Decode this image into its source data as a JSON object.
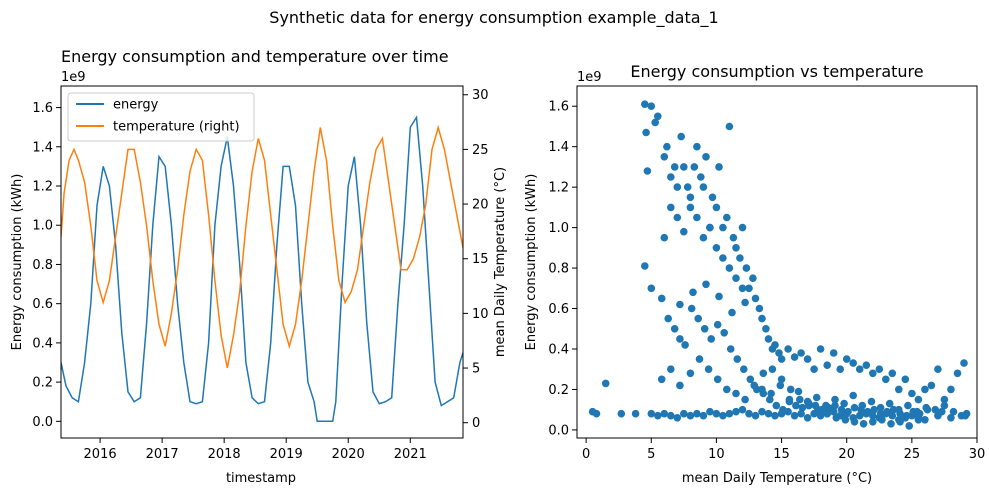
{
  "figure": {
    "suptitle": "Synthetic data for energy consumption example_data_1"
  },
  "chart_data": [
    {
      "type": "line",
      "title": "Energy consumption and temperature over time",
      "xlabel": "timestamp",
      "ylabel": "Energy consumption (kWh)",
      "ylabel_right": "mean Daily Temperature (°C)",
      "offset_text": "1e9",
      "xlim": [
        2015.37,
        2021.85
      ],
      "ylim": [
        -0.085,
        1.71
      ],
      "ylim_right": [
        -1.4,
        30.8
      ],
      "x_ticks": [
        2016,
        2017,
        2018,
        2019,
        2020,
        2021
      ],
      "x_tick_labels": [
        "2016",
        "2017",
        "2018",
        "2019",
        "2020",
        "2021"
      ],
      "y_ticks": [
        0.0,
        0.2,
        0.4,
        0.6,
        0.8,
        1.0,
        1.2,
        1.4,
        1.6
      ],
      "y_tick_labels": [
        "0.0",
        "0.2",
        "0.4",
        "0.6",
        "0.8",
        "1.0",
        "1.2",
        "1.4",
        "1.6"
      ],
      "y_right_ticks": [
        0,
        5,
        10,
        15,
        20,
        25,
        30
      ],
      "y_right_tick_labels": [
        "0",
        "5",
        "10",
        "15",
        "20",
        "25",
        "30"
      ],
      "legend": {
        "position": "upper-left",
        "entries": [
          "energy",
          "temperature (right)"
        ]
      },
      "series": [
        {
          "name": "energy",
          "color": "#1f77b4",
          "axis": "left",
          "x": [
            2015.37,
            2015.45,
            2015.55,
            2015.65,
            2015.75,
            2015.85,
            2015.95,
            2016.05,
            2016.15,
            2016.25,
            2016.35,
            2016.45,
            2016.55,
            2016.65,
            2016.75,
            2016.85,
            2016.95,
            2017.05,
            2017.15,
            2017.25,
            2017.35,
            2017.45,
            2017.55,
            2017.65,
            2017.75,
            2017.85,
            2017.95,
            2018.05,
            2018.15,
            2018.25,
            2018.35,
            2018.45,
            2018.55,
            2018.65,
            2018.75,
            2018.85,
            2018.95,
            2019.05,
            2019.15,
            2019.25,
            2019.35,
            2019.45,
            2019.5,
            2019.75,
            2019.8,
            2019.9,
            2020.0,
            2020.1,
            2020.2,
            2020.3,
            2020.4,
            2020.5,
            2020.6,
            2020.7,
            2020.8,
            2020.9,
            2021.0,
            2021.1,
            2021.2,
            2021.3,
            2021.4,
            2021.5,
            2021.6,
            2021.7,
            2021.8,
            2021.85
          ],
          "y": [
            0.3,
            0.18,
            0.12,
            0.1,
            0.3,
            0.6,
            1.1,
            1.3,
            1.2,
            0.9,
            0.45,
            0.15,
            0.1,
            0.12,
            0.5,
            1.0,
            1.35,
            1.3,
            1.0,
            0.6,
            0.3,
            0.1,
            0.09,
            0.1,
            0.4,
            1.0,
            1.3,
            1.45,
            1.2,
            0.8,
            0.3,
            0.12,
            0.09,
            0.1,
            0.4,
            0.9,
            1.3,
            1.3,
            1.1,
            0.6,
            0.2,
            0.1,
            0.0,
            0.0,
            0.1,
            0.7,
            1.2,
            1.35,
            1.0,
            0.5,
            0.15,
            0.09,
            0.1,
            0.12,
            0.6,
            1.0,
            1.5,
            1.55,
            1.2,
            0.7,
            0.2,
            0.08,
            0.1,
            0.12,
            0.3,
            0.35
          ]
        },
        {
          "name": "temperature (right)",
          "color": "#ff7f0e",
          "axis": "right",
          "x": [
            2015.37,
            2015.42,
            2015.5,
            2015.58,
            2015.65,
            2015.75,
            2015.85,
            2015.95,
            2016.05,
            2016.15,
            2016.25,
            2016.35,
            2016.45,
            2016.55,
            2016.65,
            2016.75,
            2016.85,
            2016.95,
            2017.05,
            2017.15,
            2017.25,
            2017.35,
            2017.45,
            2017.55,
            2017.65,
            2017.75,
            2017.85,
            2017.95,
            2018.05,
            2018.15,
            2018.25,
            2018.35,
            2018.45,
            2018.55,
            2018.65,
            2018.75,
            2018.85,
            2018.95,
            2019.05,
            2019.15,
            2019.25,
            2019.35,
            2019.45,
            2019.55,
            2019.65,
            2019.75,
            2019.85,
            2019.95,
            2020.05,
            2020.15,
            2020.25,
            2020.35,
            2020.45,
            2020.55,
            2020.65,
            2020.75,
            2020.85,
            2020.95,
            2021.05,
            2021.15,
            2021.25,
            2021.35,
            2021.45,
            2021.55,
            2021.65,
            2021.75,
            2021.85
          ],
          "y": [
            17,
            21,
            24,
            25,
            24,
            22,
            18,
            13,
            11,
            13,
            17,
            21,
            25,
            25,
            22,
            18,
            13,
            9,
            7,
            10,
            14,
            19,
            23,
            25,
            24,
            19,
            13,
            8,
            5,
            8,
            12,
            18,
            23,
            26,
            24,
            19,
            14,
            9,
            7,
            9,
            13,
            18,
            23,
            27,
            24,
            18,
            13,
            11,
            12,
            14,
            18,
            22,
            25,
            26,
            22,
            18,
            14,
            14,
            15,
            17,
            20,
            25,
            27,
            25,
            22,
            19,
            16
          ]
        }
      ]
    },
    {
      "type": "scatter",
      "title": "Energy consumption vs temperature",
      "xlabel": "mean Daily Temperature (°C)",
      "ylabel": "Energy consumption (kWh)",
      "offset_text": "1e9",
      "xlim": [
        -0.7,
        30.0
      ],
      "ylim": [
        -0.04,
        1.7
      ],
      "x_ticks": [
        0,
        5,
        10,
        15,
        20,
        25,
        30
      ],
      "x_tick_labels": [
        "0",
        "5",
        "10",
        "15",
        "20",
        "25",
        "30"
      ],
      "y_ticks": [
        0.0,
        0.2,
        0.4,
        0.6,
        0.8,
        1.0,
        1.2,
        1.4,
        1.6
      ],
      "y_tick_labels": [
        "0.0",
        "0.2",
        "0.4",
        "0.6",
        "0.8",
        "1.0",
        "1.2",
        "1.4",
        "1.6"
      ],
      "series": [
        {
          "color": "#1f77b4",
          "x": [
            0.5,
            0.8,
            1.5,
            2.7,
            3.8,
            4.5,
            4.6,
            4.7,
            5.0,
            5.3,
            5.5,
            6.0,
            6.2,
            6.5,
            6.8,
            7.0,
            7.3,
            7.5,
            7.8,
            8.0,
            8.3,
            8.5,
            8.8,
            9.0,
            9.2,
            9.5,
            9.7,
            10.0,
            10.2,
            10.5,
            10.8,
            11.0,
            11.3,
            11.5,
            11.8,
            12.0,
            12.3,
            12.5,
            12.8,
            13.0,
            13.3,
            13.5,
            13.8,
            14.0,
            14.3,
            14.5,
            14.8,
            15.0,
            15.5,
            16.0,
            16.5,
            17.0,
            17.5,
            18.0,
            18.5,
            19.0,
            19.5,
            20.0,
            20.5,
            21.0,
            21.5,
            22.0,
            22.5,
            23.0,
            23.5,
            24.0,
            24.5,
            25.0,
            25.5,
            26.0,
            26.5,
            27.0,
            27.5,
            28.0,
            28.5,
            29.0,
            29.2,
            5.0,
            5.5,
            6.0,
            6.5,
            7.0,
            7.5,
            8.0,
            8.5,
            9.0,
            9.5,
            10.0,
            10.5,
            11.0,
            11.5,
            12.0,
            12.5,
            13.0,
            13.5,
            14.0,
            14.5,
            15.0,
            15.5,
            16.0,
            16.5,
            17.0,
            17.5,
            18.0,
            18.5,
            19.0,
            19.5,
            20.0,
            20.5,
            21.0,
            21.5,
            22.0,
            22.5,
            23.0,
            23.5,
            24.0,
            24.5,
            25.0,
            25.5,
            26.0,
            27.0,
            28.0,
            4.5,
            5.0,
            5.8,
            6.3,
            6.8,
            7.2,
            7.6,
            8.1,
            8.6,
            9.1,
            9.6,
            10.1,
            10.6,
            11.1,
            11.6,
            12.1,
            12.6,
            13.1,
            13.6,
            14.1,
            14.6,
            15.1,
            15.6,
            16.1,
            16.6,
            17.1,
            17.6,
            18.1,
            18.6,
            19.1,
            19.6,
            20.1,
            20.6,
            21.1,
            21.6,
            22.1,
            22.6,
            23.1,
            23.6,
            24.1,
            24.6,
            25.1,
            25.6,
            26.2,
            27.3,
            28.8,
            6.0,
            6.5,
            7.0,
            7.5,
            8.0,
            8.5,
            9.0,
            9.5,
            10.0,
            10.5,
            11.0,
            11.5,
            12.0,
            5.8,
            6.5,
            7.2,
            8.0,
            8.7,
            9.4,
            10.1,
            10.8,
            11.5,
            12.2,
            12.9,
            13.6,
            14.3,
            15.0,
            15.7,
            16.4,
            17.1,
            17.8,
            18.5,
            19.2,
            19.9,
            20.6,
            21.3,
            22.0,
            22.7,
            23.4,
            24.1,
            24.8,
            25.5,
            13.5,
            14.2,
            14.9,
            15.6,
            16.3,
            17.0,
            17.7,
            18.4,
            19.1,
            19.8,
            20.5,
            21.2,
            21.9,
            22.6,
            23.3,
            24.0,
            24.7,
            25.4,
            26.1,
            26.8,
            27.5,
            28.2,
            29.1,
            7.2,
            8.2,
            9.2,
            10.2,
            11.2,
            12.2
          ],
          "y": [
            0.09,
            0.08,
            0.23,
            0.08,
            0.08,
            1.61,
            1.47,
            1.28,
            1.6,
            1.52,
            1.55,
            1.35,
            1.4,
            1.25,
            1.3,
            1.05,
            1.45,
            1.3,
            1.2,
            1.1,
            1.3,
            1.4,
            1.25,
            1.2,
            1.35,
            1.0,
            1.15,
            1.1,
            1.3,
            1.0,
            1.05,
            1.5,
            0.95,
            0.9,
            0.85,
            1.0,
            0.8,
            0.7,
            0.75,
            0.65,
            0.6,
            0.55,
            0.5,
            0.45,
            0.4,
            0.42,
            0.38,
            0.35,
            0.4,
            0.36,
            0.38,
            0.35,
            0.3,
            0.4,
            0.32,
            0.38,
            0.3,
            0.35,
            0.33,
            0.3,
            0.32,
            0.28,
            0.3,
            0.25,
            0.28,
            0.2,
            0.25,
            0.18,
            0.15,
            0.2,
            0.22,
            0.3,
            0.15,
            0.2,
            0.28,
            0.33,
            0.08,
            0.08,
            0.07,
            0.08,
            0.07,
            0.06,
            0.08,
            0.07,
            0.08,
            0.07,
            0.09,
            0.08,
            0.07,
            0.08,
            0.09,
            0.1,
            0.08,
            0.07,
            0.09,
            0.08,
            0.07,
            0.08,
            0.09,
            0.07,
            0.08,
            0.06,
            0.08,
            0.07,
            0.08,
            0.09,
            0.07,
            0.08,
            0.06,
            0.07,
            0.08,
            0.07,
            0.06,
            0.08,
            0.07,
            0.05,
            0.06,
            0.07,
            0.06,
            0.05,
            0.07,
            0.06,
            0.81,
            0.7,
            0.65,
            0.55,
            0.5,
            0.45,
            0.42,
            0.6,
            0.55,
            0.5,
            0.45,
            0.52,
            0.48,
            0.4,
            0.35,
            0.3,
            0.25,
            0.2,
            0.18,
            0.15,
            0.12,
            0.1,
            0.14,
            0.12,
            0.11,
            0.13,
            0.12,
            0.1,
            0.11,
            0.12,
            0.1,
            0.09,
            0.11,
            0.1,
            0.09,
            0.1,
            0.08,
            0.09,
            0.1,
            0.08,
            0.07,
            0.09,
            0.08,
            0.1,
            0.09,
            0.07,
            0.95,
            1.1,
            1.2,
            0.98,
            1.15,
            1.05,
            0.95,
            1.0,
            0.9,
            0.85,
            0.8,
            0.75,
            0.7,
            0.25,
            0.3,
            0.22,
            0.28,
            0.35,
            0.3,
            0.25,
            0.2,
            0.18,
            0.15,
            0.22,
            0.28,
            0.3,
            0.25,
            0.2,
            0.15,
            0.12,
            0.1,
            0.08,
            0.06,
            0.05,
            0.04,
            0.03,
            0.04,
            0.05,
            0.03,
            0.04,
            0.02,
            0.05,
            0.2,
            0.18,
            0.22,
            0.15,
            0.19,
            0.14,
            0.16,
            0.12,
            0.15,
            0.13,
            0.17,
            0.12,
            0.14,
            0.11,
            0.13,
            0.1,
            0.12,
            0.09,
            0.11,
            0.1,
            0.12,
            0.09,
            0.07,
            0.62,
            0.68,
            0.72,
            0.66,
            0.58,
            0.63
          ]
        }
      ]
    }
  ]
}
